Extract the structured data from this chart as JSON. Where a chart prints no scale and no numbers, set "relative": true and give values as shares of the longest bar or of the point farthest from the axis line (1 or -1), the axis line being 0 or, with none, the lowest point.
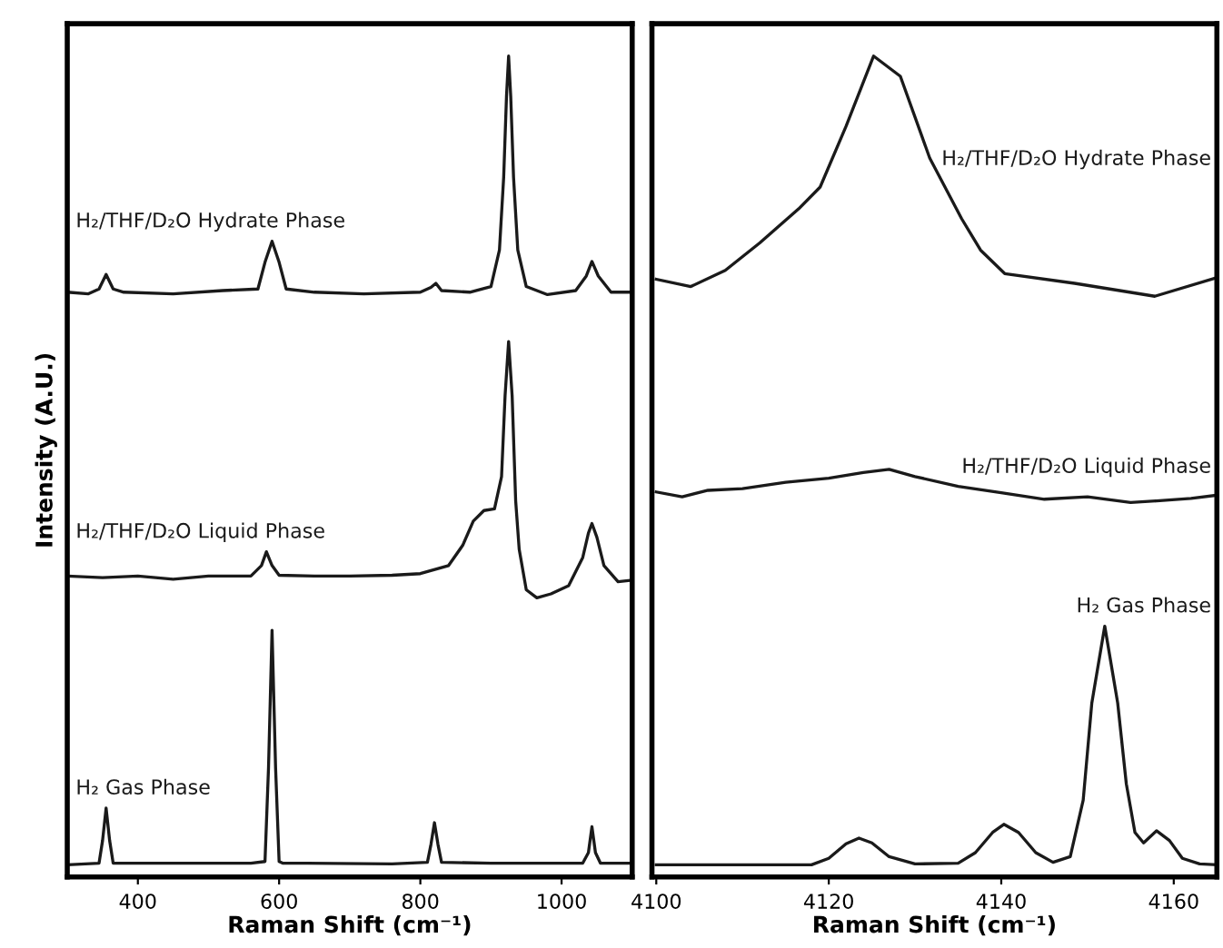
{
  "chart_data": [
    {
      "type": "line",
      "relative": true,
      "xlabel": "Raman Shift (cm⁻¹)",
      "ylabel": "Intensity (A.U.)",
      "xlim": [
        300,
        1100
      ],
      "xticks": [
        400,
        600,
        800,
        1000
      ],
      "tick_labels": "x",
      "grid": false,
      "legend": false,
      "marker": "none",
      "line_style": "solid",
      "series": [
        {
          "name": "H₂/THF/D₂O Hydrate Phase",
          "color": "#1a1a1a",
          "x": [
            300,
            330,
            345,
            355,
            365,
            380,
            450,
            520,
            570,
            580,
            590,
            600,
            610,
            650,
            720,
            800,
            815,
            822,
            830,
            870,
            900,
            912,
            918,
            922,
            925,
            928,
            932,
            938,
            950,
            980,
            1020,
            1035,
            1043,
            1052,
            1070,
            1100
          ],
          "values": [
            0.708,
            0.706,
            0.712,
            0.73,
            0.712,
            0.708,
            0.706,
            0.71,
            0.712,
            0.745,
            0.771,
            0.745,
            0.712,
            0.708,
            0.706,
            0.708,
            0.714,
            0.719,
            0.71,
            0.708,
            0.715,
            0.76,
            0.85,
            0.95,
            1.0,
            0.95,
            0.85,
            0.76,
            0.715,
            0.705,
            0.71,
            0.728,
            0.746,
            0.728,
            0.708,
            0.708
          ]
        },
        {
          "name": "H₂/THF/D₂O Liquid Phase",
          "color": "#1a1a1a",
          "x": [
            300,
            350,
            400,
            450,
            500,
            560,
            575,
            582,
            590,
            600,
            650,
            700,
            760,
            800,
            840,
            860,
            875,
            890,
            905,
            915,
            920,
            925,
            930,
            935,
            940,
            950,
            965,
            985,
            1010,
            1030,
            1038,
            1043,
            1050,
            1060,
            1080,
            1100
          ],
          "values": [
            0.357,
            0.355,
            0.357,
            0.353,
            0.357,
            0.357,
            0.37,
            0.387,
            0.37,
            0.358,
            0.357,
            0.357,
            0.358,
            0.36,
            0.37,
            0.395,
            0.425,
            0.438,
            0.44,
            0.48,
            0.58,
            0.647,
            0.58,
            0.45,
            0.39,
            0.34,
            0.33,
            0.335,
            0.345,
            0.38,
            0.41,
            0.422,
            0.405,
            0.37,
            0.35,
            0.352
          ]
        },
        {
          "name": "H₂ Gas Phase",
          "color": "#1a1a1a",
          "x": [
            300,
            345,
            350,
            355,
            360,
            365,
            400,
            560,
            580,
            585,
            590,
            595,
            600,
            605,
            640,
            760,
            810,
            815,
            820,
            825,
            830,
            900,
            1030,
            1038,
            1043,
            1048,
            1055,
            1100
          ],
          "values": [
            0,
            0.002,
            0.03,
            0.07,
            0.03,
            0.002,
            0.002,
            0.002,
            0.004,
            0.12,
            0.29,
            0.12,
            0.004,
            0.002,
            0.002,
            0.001,
            0.003,
            0.025,
            0.052,
            0.025,
            0.003,
            0.002,
            0.002,
            0.015,
            0.047,
            0.015,
            0.002,
            0.002
          ]
        }
      ]
    },
    {
      "type": "line",
      "relative": true,
      "xlabel": "Raman Shift (cm⁻¹)",
      "xlim": [
        4099.5,
        4165
      ],
      "xticks": [
        4100,
        4120,
        4140,
        4160
      ],
      "tick_labels": "x",
      "grid": false,
      "legend": false,
      "marker": "none",
      "line_style": "solid",
      "series": [
        {
          "name": "H₂/THF/D₂O Hydrate Phase",
          "color": "#1a1a1a",
          "x": [
            4100,
            4104,
            4108,
            4112,
            4116.5,
            4119,
            4122,
            4125.2,
            4128.3,
            4131.7,
            4135.4,
            4137.6,
            4140.4,
            4148.5,
            4157.8,
            4165
          ],
          "values": [
            0.724,
            0.715,
            0.735,
            0.769,
            0.811,
            0.838,
            0.913,
            1.0,
            0.975,
            0.874,
            0.799,
            0.76,
            0.731,
            0.719,
            0.703,
            0.726
          ]
        },
        {
          "name": "H₂/THF/D₂O Liquid Phase",
          "color": "#1a1a1a",
          "x": [
            4100,
            4103,
            4106,
            4110,
            4115,
            4120,
            4124,
            4127,
            4130,
            4135,
            4140,
            4145,
            4150,
            4155,
            4158,
            4162,
            4165
          ],
          "values": [
            0.461,
            0.455,
            0.463,
            0.465,
            0.473,
            0.478,
            0.485,
            0.489,
            0.48,
            0.468,
            0.46,
            0.452,
            0.455,
            0.448,
            0.45,
            0.453,
            0.457
          ]
        },
        {
          "name": "H₂ Gas Phase",
          "color": "#1a1a1a",
          "x": [
            4100,
            4118,
            4120,
            4122,
            4123.5,
            4125,
            4127,
            4130,
            4135,
            4137,
            4139,
            4140.3,
            4142,
            4144,
            4146,
            4148,
            4149.5,
            4150.5,
            4152,
            4153.5,
            4154.5,
            4155.5,
            4156.5,
            4158,
            4159.5,
            4161,
            4163,
            4165
          ],
          "values": [
            0,
            0,
            0.008,
            0.026,
            0.033,
            0.027,
            0.01,
            0.001,
            0.002,
            0.015,
            0.04,
            0.05,
            0.04,
            0.015,
            0.003,
            0.01,
            0.08,
            0.2,
            0.295,
            0.2,
            0.1,
            0.04,
            0.027,
            0.042,
            0.03,
            0.008,
            0.001,
            0
          ]
        }
      ]
    }
  ]
}
